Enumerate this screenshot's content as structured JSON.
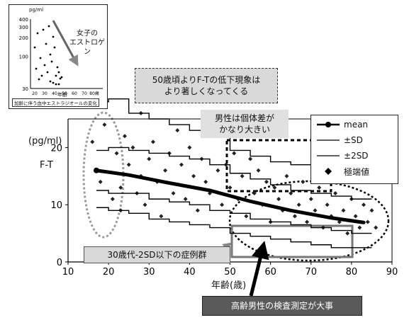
{
  "chart_data": {
    "type": "line",
    "ylabel": "F-T",
    "yunit": "(pg/ml)",
    "xlabel": "年齢(歳)",
    "xlim": [
      10,
      90
    ],
    "ylim": [
      0,
      25
    ],
    "xticks": [
      "10",
      "20",
      "30",
      "40",
      "50",
      "60",
      "70",
      "80",
      "90"
    ],
    "yticks": [
      "0",
      "10",
      "20"
    ],
    "series": [
      {
        "name": "mean",
        "x": [
          17,
          25,
          35,
          45,
          55,
          65,
          75,
          83
        ],
        "y": [
          16.0,
          15.2,
          13.8,
          12.5,
          10.6,
          9.0,
          7.7,
          6.9
        ]
      },
      {
        "name": "±SD",
        "x": [
          17,
          20,
          25,
          30,
          35,
          40,
          45,
          50,
          55,
          60,
          65,
          70,
          75,
          80,
          85
        ],
        "upper": [
          19.5,
          20.0,
          19.5,
          19.0,
          18.5,
          18.0,
          17.0,
          15.5,
          14.5,
          13.5,
          12.5,
          12.0,
          11.5,
          11.0,
          11.0
        ],
        "lower": [
          12.5,
          12.0,
          12.0,
          11.0,
          10.5,
          10.0,
          9.0,
          8.5,
          7.5,
          7.0,
          6.5,
          6.0,
          5.5,
          5.0,
          5.0
        ]
      },
      {
        "name": "±2SD",
        "x": [
          17,
          20,
          25,
          30,
          35,
          40,
          45,
          50,
          55,
          60,
          65,
          70,
          75,
          80,
          85
        ],
        "upper": [
          28.0,
          28.5,
          26.0,
          25.0,
          24.0,
          23.0,
          22.0,
          19.5,
          18.5,
          17.5,
          17.0,
          16.5,
          16.0,
          16.0,
          16.0
        ],
        "lower": [
          9.5,
          9.0,
          8.5,
          7.5,
          7.0,
          6.5,
          6.0,
          5.0,
          4.5,
          4.0,
          3.5,
          3.0,
          2.5,
          2.5,
          2.5
        ]
      },
      {
        "name": "極端値",
        "type": "scatter",
        "x": [
          16,
          18,
          19,
          21,
          22,
          23,
          23,
          24,
          25,
          26,
          27,
          28,
          28,
          29,
          30,
          31,
          32,
          33,
          34,
          35,
          36,
          37,
          38,
          39,
          40,
          41,
          42,
          43,
          44,
          45,
          46,
          47,
          48,
          49,
          50,
          51,
          52,
          53,
          54,
          55,
          56,
          57,
          58,
          59,
          60,
          61,
          62,
          63,
          64,
          65,
          66,
          67,
          68,
          69,
          70,
          71,
          72,
          73,
          74,
          75,
          76,
          77,
          78,
          79,
          80,
          81,
          82,
          83,
          84,
          85,
          86
        ],
        "y": [
          21,
          14,
          24,
          11,
          19,
          13,
          9,
          22,
          17,
          20,
          12,
          26,
          15,
          10,
          18,
          21,
          14,
          8,
          16,
          19,
          12,
          23,
          17,
          11,
          20,
          15,
          9,
          18,
          14,
          12,
          22,
          16,
          10,
          17,
          13,
          19,
          11,
          15,
          8,
          18,
          12,
          16,
          10,
          14,
          7,
          13,
          11,
          9,
          15,
          12,
          8,
          10,
          14,
          7,
          11,
          9,
          13,
          6,
          10,
          8,
          12,
          7,
          9,
          5,
          11,
          8,
          6,
          10,
          7,
          9,
          6
        ]
      }
    ],
    "annotations": {
      "top": "50歳頃よりF-Tの低下現象は\nより著しくなってくる",
      "male": "男性は個体差が\nかなり大きい",
      "young": "30歳代-2SD以下の症例群",
      "elderly": "高齢男性の検査測定が大事"
    },
    "legend": {
      "items": [
        "mean",
        "±SD",
        "±2SD",
        "極端値"
      ],
      "position": "right"
    },
    "inset": {
      "type": "scatter",
      "title": "女子の\nエストロゲン",
      "yunit": "pg/ml",
      "xlabel": "年齢",
      "yticks": [
        "30",
        "100",
        "200",
        "300",
        "400"
      ],
      "xticks": [
        "20",
        "30",
        "40",
        "50",
        "60",
        "70",
        "80歳"
      ],
      "caption": "加齢に伴う血中エストラジオールの変化"
    }
  }
}
